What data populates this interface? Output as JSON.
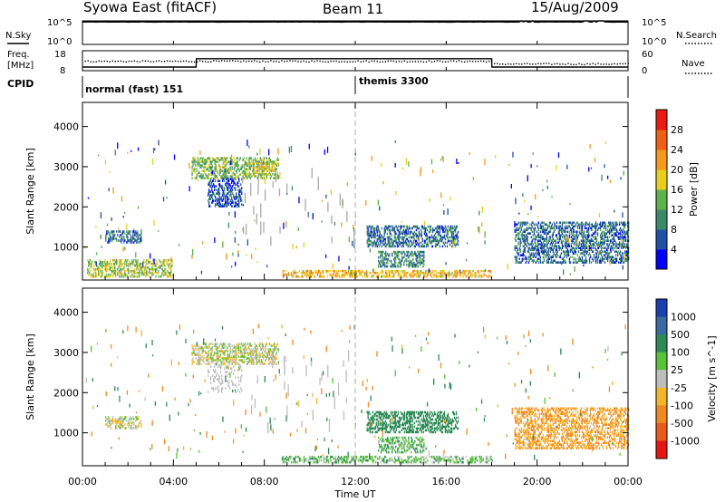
{
  "header": {
    "station": "Syowa East (fitACF)",
    "beam": "Beam 11",
    "date": "15/Aug/2009"
  },
  "strip_labels": {
    "nsky": "N.Sky",
    "nsky_ticks": [
      "10^5",
      "10^0"
    ],
    "nsearch": "N.Search",
    "nsearch_ticks": [
      "10^5",
      "10^0"
    ],
    "freq_line1": "Freq.",
    "freq_line2": "[MHz]",
    "freq_ticks": [
      "18",
      "8"
    ],
    "nave": "Nave",
    "nave_ticks": [
      "60",
      "0"
    ],
    "cpid": "CPID",
    "cpid_normal": "normal (fast) 151",
    "cpid_themis": "themis 3300"
  },
  "x_axis": {
    "label": "Time UT",
    "ticks": [
      "00:00",
      "04:00",
      "08:00",
      "12:00",
      "16:00",
      "20:00",
      "00:00"
    ],
    "hours": [
      0,
      4,
      8,
      12,
      16,
      20,
      24
    ],
    "range_hours": [
      0,
      24
    ]
  },
  "y_axis": {
    "label": "Slant Range [km]",
    "ticks": [
      "1000",
      "2000",
      "3000",
      "4000"
    ],
    "values": [
      1000,
      2000,
      3000,
      4000
    ],
    "range_km": [
      180,
      4600
    ]
  },
  "colorbars": {
    "power": {
      "label": "Power [dB]",
      "ticks": [
        "4",
        "8",
        "12",
        "16",
        "20",
        "24",
        "28"
      ],
      "colors": [
        "#0000ff",
        "#1f50a8",
        "#3a8a6a",
        "#5db24a",
        "#e8cf1c",
        "#f59a1a",
        "#f06010",
        "#e81a12"
      ]
    },
    "velocity": {
      "label": "Velocity [m s^-1]",
      "ticks": [
        "1000",
        "500",
        "100",
        "25",
        "-25",
        "-100",
        "-500",
        "-1000"
      ],
      "colors": [
        "#1a3fb0",
        "#3a68a0",
        "#2c8a56",
        "#58c23a",
        "#bdbdbd",
        "#f5b52a",
        "#f08a20",
        "#ec5a1a",
        "#e81512"
      ]
    }
  },
  "chart_data": [
    {
      "type": "line",
      "title": "N.Sky / N.Search",
      "x_unit": "hours UT",
      "y_scale": "log",
      "ylim": [
        1,
        100000
      ],
      "series": [
        {
          "name": "N.Sky",
          "x": [
            0,
            6,
            12,
            18,
            22,
            23,
            24
          ],
          "values": [
            60000,
            60000,
            60000,
            60000,
            80000,
            100000,
            60000
          ]
        }
      ]
    },
    {
      "type": "line",
      "title": "Freq. / Nave",
      "x_unit": "hours UT",
      "series": [
        {
          "name": "Freq.",
          "x": [
            0,
            5,
            5.01,
            18,
            18.01,
            24
          ],
          "values": [
            9.8,
            9.8,
            14,
            14,
            9.8,
            9.8
          ],
          "ylim": [
            8,
            18
          ]
        },
        {
          "name": "Nave",
          "x": [
            0,
            5,
            12,
            18,
            24
          ],
          "values": [
            30,
            28,
            30,
            22,
            22
          ],
          "ylim": [
            0,
            60
          ]
        }
      ]
    },
    {
      "type": "heatmap",
      "title": "Power [dB]",
      "x_unit": "hours UT",
      "y_unit": "km",
      "regions": [
        {
          "t": [
            1.0,
            2.6
          ],
          "r": [
            1100,
            1400
          ],
          "value_db": 8
        },
        {
          "t": [
            4.8,
            8.6
          ],
          "r": [
            2700,
            3200
          ],
          "value_db": 14
        },
        {
          "t": [
            5.5,
            7.0
          ],
          "r": [
            2000,
            2700
          ],
          "value_db": 6
        },
        {
          "t": [
            7.5,
            8.4
          ],
          "r": [
            2800,
            3100
          ],
          "value_db": 18
        },
        {
          "t": [
            12.5,
            16.5
          ],
          "r": [
            1000,
            1500
          ],
          "value_db": 8
        },
        {
          "t": [
            13.0,
            15.0
          ],
          "r": [
            500,
            900
          ],
          "value_db": 10
        },
        {
          "t": [
            8.8,
            18.0
          ],
          "r": [
            250,
            420
          ],
          "value_db": 20
        },
        {
          "t": [
            19.0,
            24.0
          ],
          "r": [
            600,
            1600
          ],
          "value_db": 8
        },
        {
          "t": [
            0.2,
            4.0
          ],
          "r": [
            250,
            700
          ],
          "value_db": 16
        }
      ]
    },
    {
      "type": "heatmap",
      "title": "Velocity [m s^-1]",
      "x_unit": "hours UT",
      "y_unit": "km",
      "regions": [
        {
          "t": [
            1.0,
            2.6
          ],
          "r": [
            1100,
            1400
          ],
          "value_ms": 0
        },
        {
          "t": [
            4.8,
            8.6
          ],
          "r": [
            2700,
            3200
          ],
          "value_ms": 0
        },
        {
          "t": [
            12.5,
            16.5
          ],
          "r": [
            1000,
            1500
          ],
          "value_ms": 200
        },
        {
          "t": [
            13.0,
            15.0
          ],
          "r": [
            500,
            900
          ],
          "value_ms": 80
        },
        {
          "t": [
            8.8,
            18.0
          ],
          "r": [
            250,
            420
          ],
          "value_ms": 60
        },
        {
          "t": [
            19.0,
            24.0
          ],
          "r": [
            600,
            1600
          ],
          "value_ms": -100
        }
      ]
    }
  ]
}
